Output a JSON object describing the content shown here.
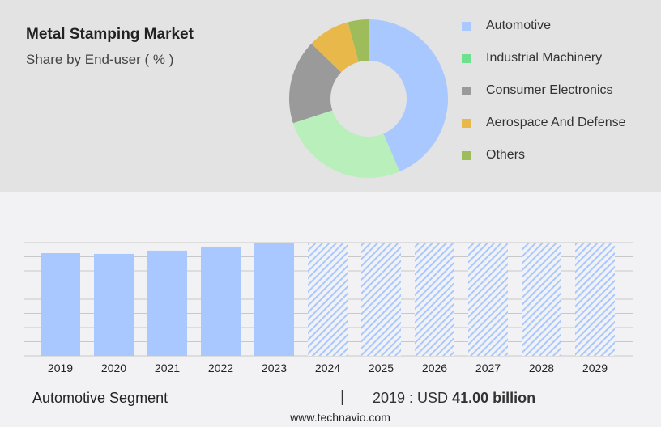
{
  "header": {
    "title": "Metal Stamping Market",
    "subtitle": "Share by End-user ( % )"
  },
  "chart_data": [
    {
      "type": "pie",
      "variant": "donut",
      "labels": [
        "Automotive",
        "Industrial Machinery",
        "Consumer Electronics",
        "Aerospace And Defense",
        "Others"
      ],
      "values": [
        43.6,
        26.4,
        17.2,
        8.6,
        4.2
      ],
      "colors": [
        "#a8c8ff",
        "#b8efba",
        "#9a9a9a",
        "#e8b94a",
        "#9fbc5a"
      ],
      "legend_colors": [
        "#a8c8ff",
        "#6ee08e",
        "#9a9a9a",
        "#e8b94a",
        "#9fbc5a"
      ],
      "legend": "right"
    },
    {
      "type": "bar",
      "categories": [
        "2019",
        "2020",
        "2021",
        "2022",
        "2023",
        "2024",
        "2025",
        "2026",
        "2027",
        "2028",
        "2029"
      ],
      "values": [
        41.0,
        40.7,
        42.0,
        43.6,
        45.2,
        null,
        null,
        null,
        null,
        null,
        null
      ],
      "forecast_from": "2024",
      "color": "#a8c8ff",
      "grid": true
    }
  ],
  "footer": {
    "segment": "Automotive Segment",
    "separator": "|",
    "year_label": "2019 : USD",
    "value": "41.00 billion",
    "url": "www.technavio.com"
  }
}
